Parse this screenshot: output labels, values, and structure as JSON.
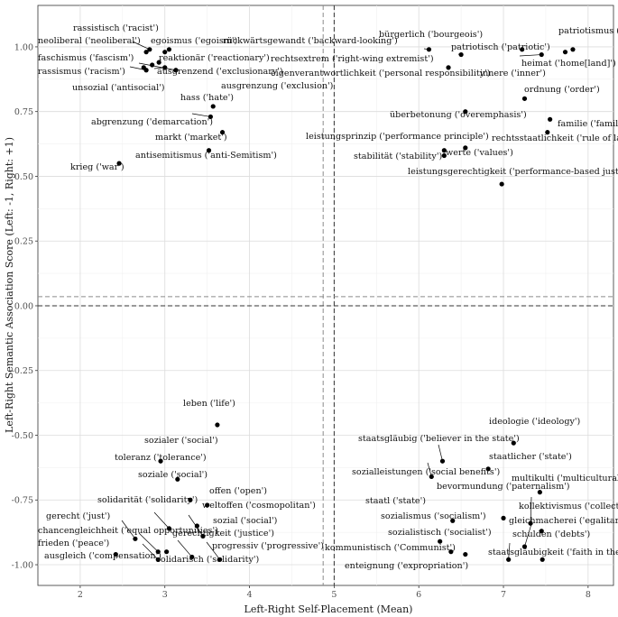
{
  "chart_data": {
    "type": "scatter",
    "title": "",
    "xlabel": "Left-Right Self-Placement (Mean)",
    "ylabel": "Left-Right Semantic Association Score (Left: -1, Right: +1)",
    "xlim": [
      1.5,
      8.3
    ],
    "ylim": [
      -1.08,
      1.16
    ],
    "x_ticks": [
      2,
      3,
      4,
      5,
      6,
      7,
      8
    ],
    "y_ticks": [
      1.0,
      0.75,
      0.5,
      0.25,
      0.0,
      -0.25,
      -0.5,
      -0.75,
      -1.0
    ],
    "y_tick_labels": [
      "1.00",
      "0.75",
      "0.50",
      "0.25",
      "0.00",
      "-0.25",
      "-0.50",
      "-0.75",
      "-1.00"
    ],
    "grid": true,
    "reference_lines": {
      "vertical_dashed": [
        4.87,
        5.0
      ],
      "horizontal_dashed": [
        0.035,
        0.0
      ]
    },
    "points": [
      {
        "label": "rassistisch ('racist')",
        "x": 2.82,
        "y": 0.99
      },
      {
        "label": "neoliberal ('neoliberal')",
        "x": 2.78,
        "y": 0.98
      },
      {
        "label": "egoismus ('egoism')",
        "x": 3.0,
        "y": 0.98
      },
      {
        "label": "rückwärtsgewandt ('backward-looking')",
        "x": 3.05,
        "y": 0.99
      },
      {
        "label": "faschismus ('fascism')",
        "x": 2.85,
        "y": 0.93
      },
      {
        "label": "reaktionär ('reactionary')",
        "x": 2.93,
        "y": 0.94
      },
      {
        "label": "rassismus ('racism')",
        "x": 2.75,
        "y": 0.92
      },
      {
        "label": "unsozial ('antisocial')",
        "x": 2.78,
        "y": 0.91
      },
      {
        "label": "ausgrenzend ('exclusionary')",
        "x": 3.13,
        "y": 0.91
      },
      {
        "label": "ausgrenzung ('exclusion')",
        "x": 3.0,
        "y": 0.92
      },
      {
        "label": "hass ('hate')",
        "x": 3.57,
        "y": 0.77
      },
      {
        "label": "abgrenzung ('demarcation')",
        "x": 3.54,
        "y": 0.73
      },
      {
        "label": "markt ('market')",
        "x": 3.68,
        "y": 0.67
      },
      {
        "label": "antisemitismus ('anti-Semitism')",
        "x": 3.52,
        "y": 0.6
      },
      {
        "label": "krieg ('war')",
        "x": 2.46,
        "y": 0.55
      },
      {
        "label": "bürgerlich ('bourgeois')",
        "x": 6.12,
        "y": 0.99
      },
      {
        "label": "patriotisch ('patriotic')",
        "x": 7.22,
        "y": 0.99
      },
      {
        "label": "patriotismus ('patriotism')",
        "x": 7.82,
        "y": 0.99
      },
      {
        "label": "rechtsextrem ('right-wing extremist')",
        "x": 6.5,
        "y": 0.97
      },
      {
        "label": "heimat ('home[land]')",
        "x": 7.73,
        "y": 0.98
      },
      {
        "label": "eigenverantwortlichkeit ('personal responsibility')",
        "x": 6.35,
        "y": 0.92
      },
      {
        "label": "innere ('inner')",
        "x": 7.45,
        "y": 0.97
      },
      {
        "label": "ordnung ('order')",
        "x": 7.25,
        "y": 0.8
      },
      {
        "label": "überbetonung ('overemphasis')",
        "x": 6.55,
        "y": 0.75
      },
      {
        "label": "familie ('family')",
        "x": 7.55,
        "y": 0.72
      },
      {
        "label": "leistungsprinzip ('performance principle')",
        "x": 6.3,
        "y": 0.6
      },
      {
        "label": "rechtsstaatlichkeit ('rule of law')",
        "x": 7.52,
        "y": 0.67
      },
      {
        "label": "werte ('values')",
        "x": 6.55,
        "y": 0.61
      },
      {
        "label": "stabilität ('stability')",
        "x": 6.3,
        "y": 0.58
      },
      {
        "label": "leistungsgerechtigkeit ('performance-based justice')",
        "x": 6.98,
        "y": 0.47
      },
      {
        "label": "leben ('life')",
        "x": 3.62,
        "y": -0.46
      },
      {
        "label": "sozialer ('social')",
        "x": 2.95,
        "y": -0.6
      },
      {
        "label": "toleranz ('tolerance')",
        "x": 3.15,
        "y": -0.67
      },
      {
        "label": "soziale ('social')",
        "x": 3.3,
        "y": -0.75
      },
      {
        "label": "offen ('open')",
        "x": 3.5,
        "y": -0.77
      },
      {
        "label": "solidarität ('solidarity')",
        "x": 3.05,
        "y": -0.86
      },
      {
        "label": "weltoffen ('cosmopolitan')",
        "x": 3.38,
        "y": -0.85
      },
      {
        "label": "sozial ('social')",
        "x": 3.45,
        "y": -0.89
      },
      {
        "label": "gerecht ('just')",
        "x": 2.65,
        "y": -0.9
      },
      {
        "label": "chancengleichheit ('equal opportunities')",
        "x": 2.92,
        "y": -0.95
      },
      {
        "label": "gerechtigkeit ('justice')",
        "x": 3.02,
        "y": -0.95
      },
      {
        "label": "frieden ('peace')",
        "x": 2.42,
        "y": -0.96
      },
      {
        "label": "progressiv ('progressive')",
        "x": 3.65,
        "y": -0.98
      },
      {
        "label": "ausgleich ('compensation')",
        "x": 2.92,
        "y": -0.98
      },
      {
        "label": "solidarisch ('solidarity')",
        "x": 3.32,
        "y": -0.97
      },
      {
        "label": "ideologie ('ideology')",
        "x": 7.12,
        "y": -0.53
      },
      {
        "label": "staatsgläubig ('believer in the state')",
        "x": 6.28,
        "y": -0.6
      },
      {
        "label": "staatlicher ('state')",
        "x": 6.82,
        "y": -0.63
      },
      {
        "label": "sozialleistungen ('social benefits')",
        "x": 6.15,
        "y": -0.66
      },
      {
        "label": "multikulti ('multicultural')",
        "x": 7.43,
        "y": -0.72
      },
      {
        "label": "bevormundung ('paternalism')",
        "x": 7.0,
        "y": -0.82
      },
      {
        "label": "staatl ('state')",
        "x": 6.4,
        "y": -0.83
      },
      {
        "label": "kollektivismus ('collectivism')",
        "x": 7.32,
        "y": -0.84
      },
      {
        "label": "sozialismus ('socialism')",
        "x": 6.25,
        "y": -0.91
      },
      {
        "label": "gleichmacherei ('egalitarianism')",
        "x": 7.45,
        "y": -0.87
      },
      {
        "label": "sozialistisch ('socialist')",
        "x": 6.38,
        "y": -0.95
      },
      {
        "label": "schulden ('debts')",
        "x": 7.25,
        "y": -0.93
      },
      {
        "label": "kommunistisch ('Communist')",
        "x": 6.55,
        "y": -0.96
      },
      {
        "label": "staatsgläubigkeit ('faith in the state')",
        "x": 7.46,
        "y": -0.98
      },
      {
        "label": "enteignung ('expropriation')",
        "x": 7.06,
        "y": -0.98
      }
    ]
  }
}
